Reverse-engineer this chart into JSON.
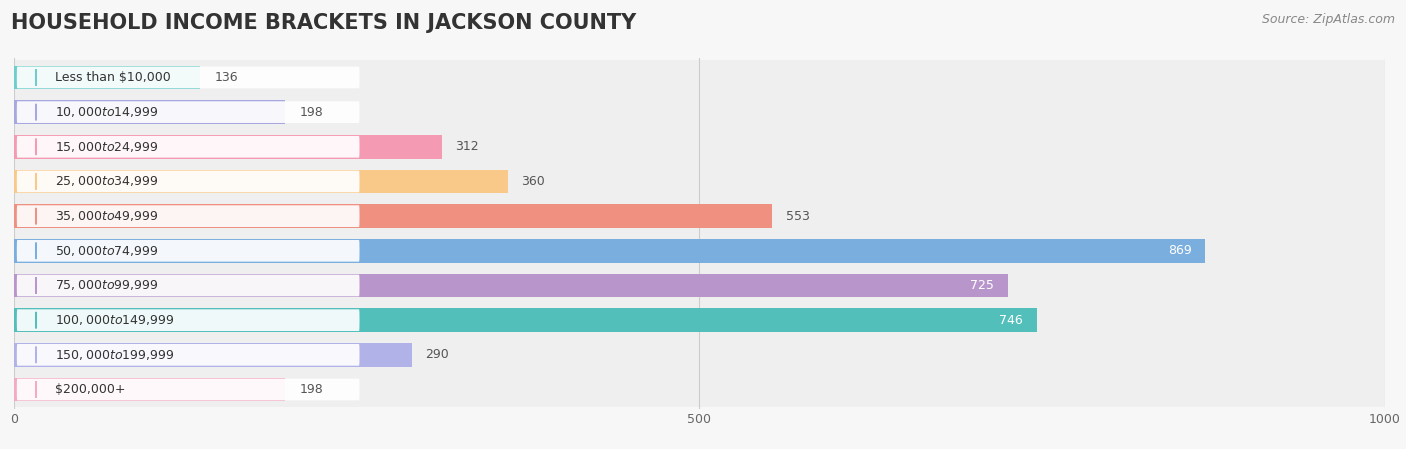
{
  "title": "HOUSEHOLD INCOME BRACKETS IN JACKSON COUNTY",
  "source": "Source: ZipAtlas.com",
  "categories": [
    "Less than $10,000",
    "$10,000 to $14,999",
    "$15,000 to $24,999",
    "$25,000 to $34,999",
    "$35,000 to $49,999",
    "$50,000 to $74,999",
    "$75,000 to $99,999",
    "$100,000 to $149,999",
    "$150,000 to $199,999",
    "$200,000+"
  ],
  "values": [
    136,
    198,
    312,
    360,
    553,
    869,
    725,
    746,
    290,
    198
  ],
  "bar_colors": [
    "#6dcecb",
    "#a8a8e0",
    "#f49ab2",
    "#f9c98a",
    "#f09080",
    "#7aaedf",
    "#b896cc",
    "#52bfba",
    "#b0b2e8",
    "#f4aac2"
  ],
  "xlim": [
    0,
    1000
  ],
  "xticks": [
    0,
    500,
    1000
  ],
  "background_color": "#f7f7f7",
  "row_bg_color": "#efefef",
  "bar_bg_color": "#e8e8e8",
  "title_fontsize": 15,
  "source_fontsize": 9,
  "tick_fontsize": 9,
  "value_label_fontsize": 9,
  "cat_label_fontsize": 9,
  "value_label_threshold": 600,
  "bar_height": 0.68
}
